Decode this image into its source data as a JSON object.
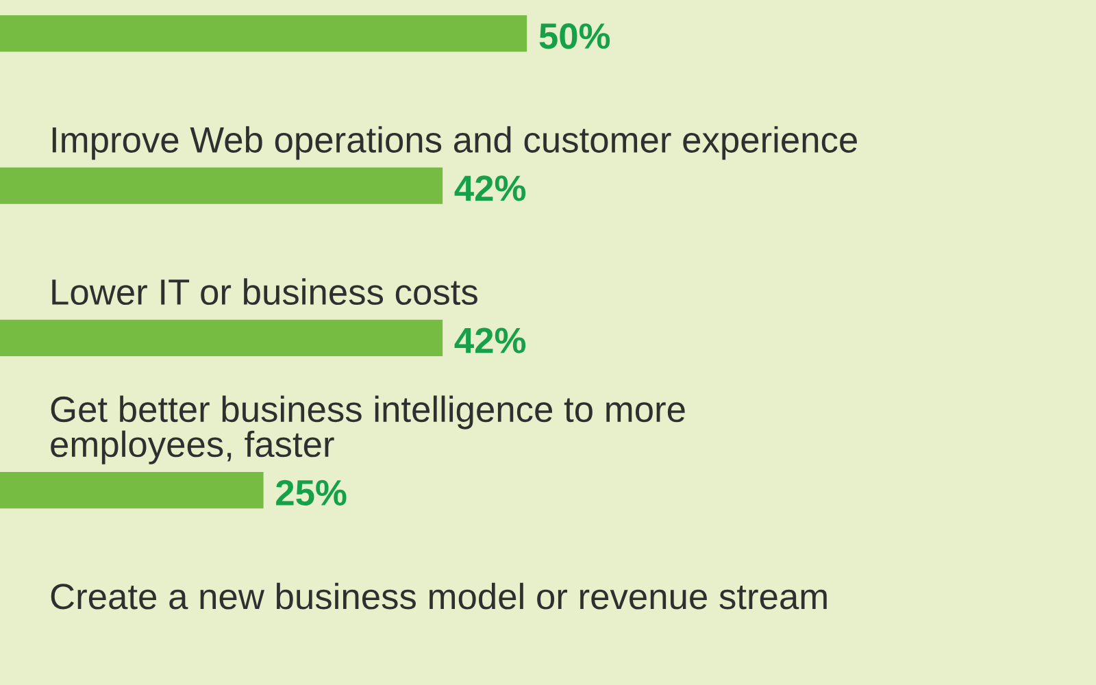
{
  "chart_data": {
    "type": "bar",
    "orientation": "horizontal",
    "categories": [
      null,
      "Improve Web operations and customer experience",
      "Lower IT or business costs",
      "Get better business intelligence to more\nemployees, faster",
      "Create a new business model or revenue stream"
    ],
    "values": [
      50,
      42,
      42,
      25,
      null
    ],
    "value_labels": [
      "50%",
      "42%",
      "42%",
      "25%",
      null
    ],
    "color": "#76bc43",
    "xlim": [
      0,
      104
    ]
  }
}
